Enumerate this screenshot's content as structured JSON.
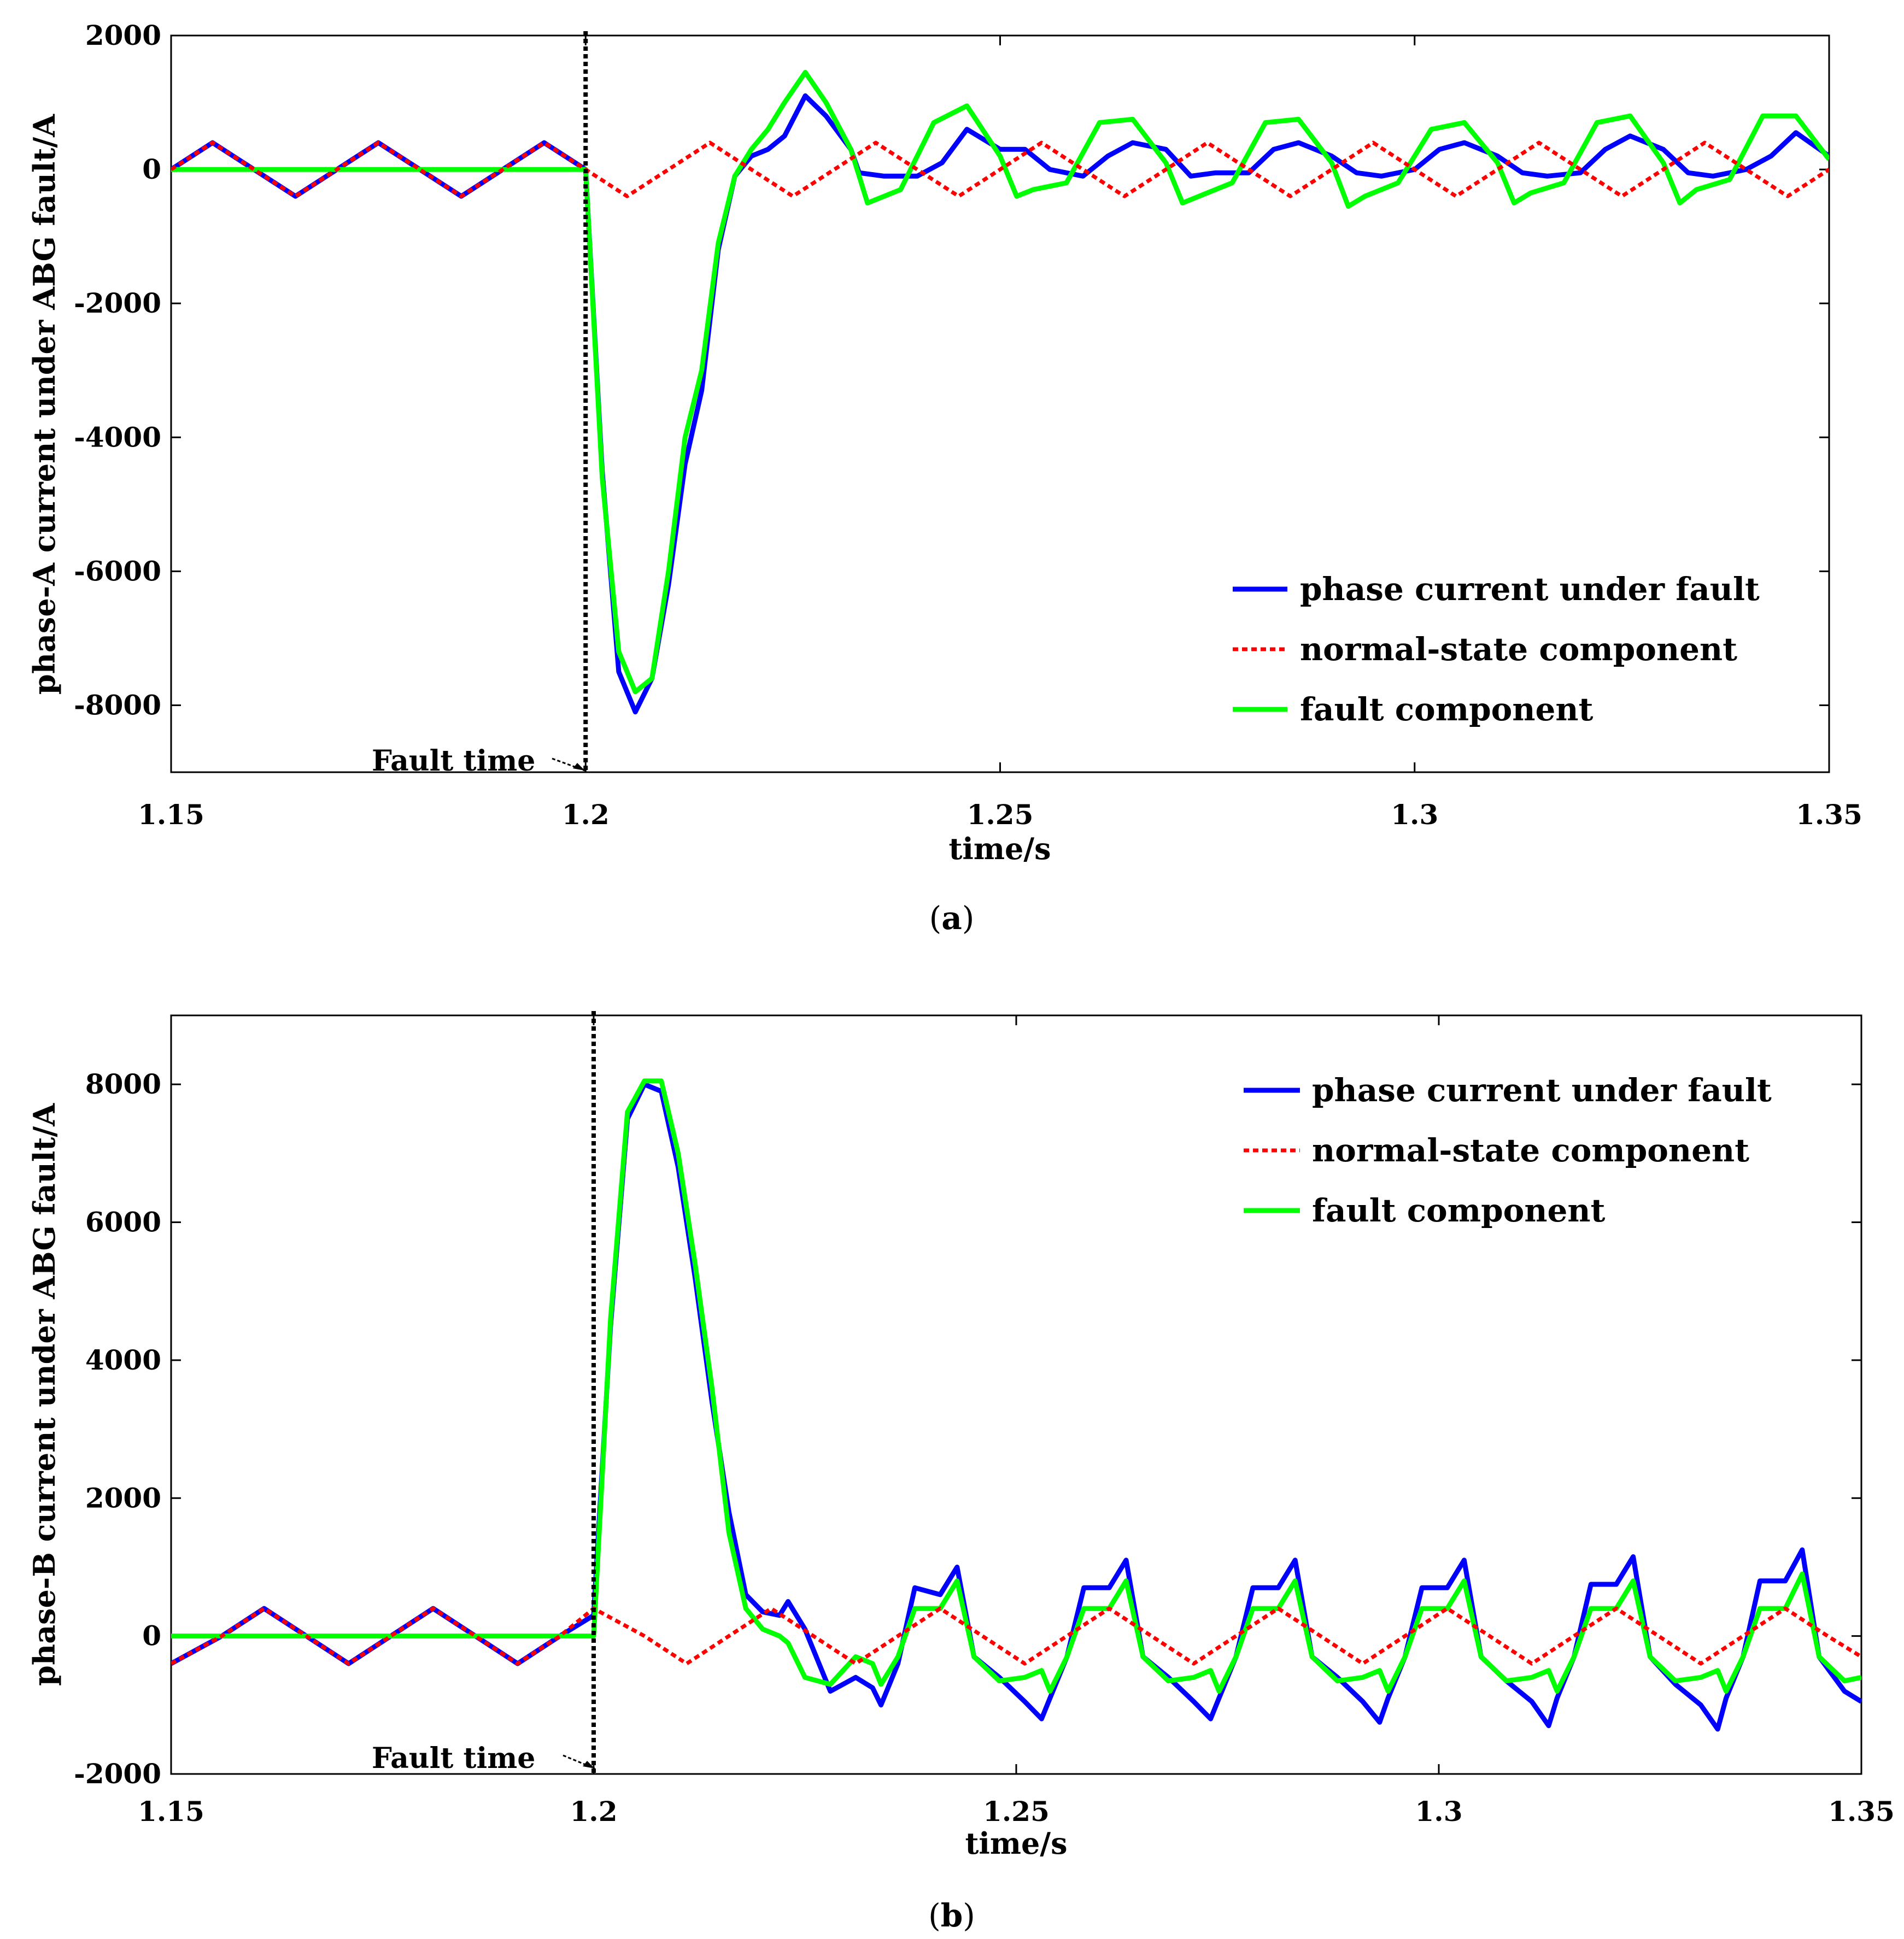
{
  "colors": {
    "fault_current": "#0000ff",
    "normal_state": "#ff0000",
    "fault_component": "#00ff00",
    "fault_marker": "#000000"
  },
  "chart_data": [
    {
      "type": "line",
      "panel_label": "a",
      "xlabel": "time/s",
      "ylabel": "phase-A current under ABG fault/A",
      "xlim": [
        1.15,
        1.35
      ],
      "ylim": [
        -9000,
        2000
      ],
      "xticks": [
        1.15,
        1.2,
        1.25,
        1.3,
        1.35
      ],
      "xtick_labels": [
        "1.15",
        "1.2",
        "1.25",
        "1.3",
        "1.35"
      ],
      "yticks": [
        2000,
        0,
        -2000,
        -4000,
        -6000,
        -8000
      ],
      "ytick_labels": [
        "2000",
        "0",
        "-2000",
        "-4000",
        "-6000",
        "-8000"
      ],
      "grid": false,
      "legend_position": "bottom-right",
      "annotation": {
        "text": "Fault time",
        "x": 1.2
      },
      "series": [
        {
          "name": "phase current under fault",
          "style": "solid",
          "color_key": "fault_current",
          "x": [
            1.15,
            1.155,
            1.16,
            1.165,
            1.17,
            1.175,
            1.18,
            1.185,
            1.19,
            1.195,
            1.2,
            1.202,
            1.204,
            1.206,
            1.208,
            1.21,
            1.212,
            1.214,
            1.216,
            1.218,
            1.22,
            1.222,
            1.224,
            1.2265,
            1.229,
            1.232,
            1.233,
            1.236,
            1.24,
            1.243,
            1.246,
            1.25,
            1.253,
            1.256,
            1.26,
            1.263,
            1.266,
            1.27,
            1.273,
            1.276,
            1.28,
            1.283,
            1.286,
            1.29,
            1.293,
            1.296,
            1.3,
            1.303,
            1.306,
            1.31,
            1.313,
            1.316,
            1.32,
            1.323,
            1.326,
            1.33,
            1.333,
            1.336,
            1.34,
            1.343,
            1.346,
            1.35
          ],
          "y": [
            0,
            400,
            0,
            -400,
            0,
            400,
            0,
            -400,
            0,
            400,
            0,
            -4500,
            -7500,
            -8100,
            -7600,
            -6200,
            -4400,
            -3300,
            -1200,
            -100,
            200,
            300,
            500,
            1100,
            800,
            300,
            -50,
            -100,
            -100,
            100,
            600,
            300,
            300,
            0,
            -100,
            200,
            400,
            300,
            -100,
            -50,
            -50,
            300,
            400,
            200,
            -50,
            -100,
            0,
            300,
            400,
            200,
            -50,
            -100,
            -50,
            300,
            500,
            300,
            -50,
            -100,
            0,
            200,
            550,
            200
          ]
        },
        {
          "name": "normal-state component",
          "style": "dotted",
          "color_key": "normal_state",
          "x": [
            1.15,
            1.155,
            1.16,
            1.165,
            1.17,
            1.175,
            1.18,
            1.185,
            1.19,
            1.195,
            1.2,
            1.205,
            1.21,
            1.215,
            1.22,
            1.225,
            1.23,
            1.235,
            1.24,
            1.245,
            1.25,
            1.255,
            1.26,
            1.265,
            1.27,
            1.275,
            1.28,
            1.285,
            1.29,
            1.295,
            1.3,
            1.305,
            1.31,
            1.315,
            1.32,
            1.325,
            1.33,
            1.335,
            1.34,
            1.345,
            1.35
          ],
          "y": [
            0,
            400,
            0,
            -400,
            0,
            400,
            0,
            -400,
            0,
            400,
            0,
            -400,
            0,
            400,
            0,
            -400,
            0,
            400,
            0,
            -400,
            0,
            400,
            0,
            -400,
            0,
            400,
            0,
            -400,
            0,
            400,
            0,
            -400,
            0,
            400,
            0,
            -400,
            0,
            400,
            0,
            -400,
            0
          ]
        },
        {
          "name": "fault component",
          "style": "solid",
          "color_key": "fault_component",
          "x": [
            1.15,
            1.2,
            1.202,
            1.204,
            1.206,
            1.208,
            1.21,
            1.212,
            1.214,
            1.216,
            1.218,
            1.22,
            1.222,
            1.224,
            1.2265,
            1.229,
            1.232,
            1.234,
            1.238,
            1.242,
            1.246,
            1.25,
            1.252,
            1.254,
            1.258,
            1.262,
            1.266,
            1.27,
            1.272,
            1.274,
            1.278,
            1.282,
            1.286,
            1.29,
            1.292,
            1.294,
            1.298,
            1.302,
            1.306,
            1.31,
            1.312,
            1.314,
            1.318,
            1.322,
            1.326,
            1.33,
            1.332,
            1.334,
            1.338,
            1.342,
            1.346,
            1.35
          ],
          "y": [
            0,
            0,
            -4600,
            -7200,
            -7800,
            -7600,
            -6000,
            -4000,
            -3000,
            -1100,
            -100,
            300,
            600,
            1000,
            1450,
            1000,
            300,
            -500,
            -300,
            700,
            950,
            200,
            -400,
            -300,
            -200,
            700,
            750,
            100,
            -500,
            -400,
            -200,
            700,
            750,
            100,
            -550,
            -400,
            -200,
            600,
            700,
            100,
            -500,
            -350,
            -200,
            700,
            800,
            100,
            -500,
            -300,
            -150,
            800,
            800,
            150
          ]
        }
      ]
    },
    {
      "type": "line",
      "panel_label": "b",
      "xlabel": "time/s",
      "ylabel": "phase-B current under ABG fault/A",
      "xlim": [
        1.15,
        1.35
      ],
      "ylim": [
        -2000,
        9000
      ],
      "xticks": [
        1.15,
        1.2,
        1.25,
        1.3,
        1.35
      ],
      "xtick_labels": [
        "1.15",
        "1.2",
        "1.25",
        "1.3",
        "1.35"
      ],
      "yticks": [
        8000,
        6000,
        4000,
        2000,
        0,
        -2000
      ],
      "ytick_labels": [
        "8000",
        "6000",
        "4000",
        "2000",
        "0",
        "-2000"
      ],
      "grid": false,
      "legend_position": "top-right",
      "annotation": {
        "text": "Fault time",
        "x": 1.2
      },
      "series": [
        {
          "name": "phase current under fault",
          "style": "solid",
          "color_key": "fault_current",
          "x": [
            1.15,
            1.156,
            1.161,
            1.166,
            1.171,
            1.176,
            1.181,
            1.186,
            1.191,
            1.196,
            1.2,
            1.202,
            1.204,
            1.206,
            1.208,
            1.21,
            1.212,
            1.214,
            1.216,
            1.218,
            1.22,
            1.222,
            1.223,
            1.225,
            1.228,
            1.231,
            1.233,
            1.234,
            1.236,
            1.238,
            1.241,
            1.243,
            1.245,
            1.248,
            1.251,
            1.253,
            1.254,
            1.256,
            1.258,
            1.261,
            1.263,
            1.265,
            1.268,
            1.271,
            1.273,
            1.274,
            1.276,
            1.278,
            1.281,
            1.283,
            1.285,
            1.288,
            1.291,
            1.293,
            1.294,
            1.296,
            1.298,
            1.301,
            1.303,
            1.305,
            1.308,
            1.311,
            1.313,
            1.314,
            1.316,
            1.318,
            1.321,
            1.323,
            1.325,
            1.328,
            1.331,
            1.333,
            1.334,
            1.336,
            1.338,
            1.341,
            1.343,
            1.345,
            1.348,
            1.35
          ],
          "y": [
            -400,
            0,
            400,
            0,
            -400,
            0,
            400,
            0,
            -400,
            0,
            300,
            4500,
            7500,
            8000,
            7900,
            6800,
            5200,
            3400,
            1800,
            600,
            350,
            300,
            500,
            100,
            -800,
            -600,
            -750,
            -1000,
            -400,
            700,
            600,
            1000,
            -300,
            -600,
            -950,
            -1200,
            -900,
            -300,
            700,
            700,
            1100,
            -300,
            -600,
            -950,
            -1200,
            -900,
            -300,
            700,
            700,
            1100,
            -300,
            -600,
            -950,
            -1250,
            -900,
            -300,
            700,
            700,
            1100,
            -300,
            -650,
            -950,
            -1300,
            -900,
            -300,
            750,
            750,
            1150,
            -300,
            -700,
            -1000,
            -1350,
            -900,
            -300,
            800,
            800,
            1250,
            -300,
            -800,
            -950
          ]
        },
        {
          "name": "normal-state component",
          "style": "dotted",
          "color_key": "normal_state",
          "x": [
            1.15,
            1.156,
            1.161,
            1.166,
            1.171,
            1.176,
            1.181,
            1.186,
            1.191,
            1.196,
            1.2,
            1.206,
            1.211,
            1.216,
            1.221,
            1.226,
            1.231,
            1.236,
            1.241,
            1.246,
            1.251,
            1.256,
            1.261,
            1.266,
            1.271,
            1.276,
            1.281,
            1.286,
            1.291,
            1.296,
            1.301,
            1.306,
            1.311,
            1.316,
            1.321,
            1.326,
            1.331,
            1.336,
            1.341,
            1.346,
            1.35
          ],
          "y": [
            -400,
            0,
            400,
            0,
            -400,
            0,
            400,
            0,
            -400,
            0,
            400,
            0,
            -400,
            0,
            400,
            0,
            -400,
            0,
            400,
            0,
            -400,
            0,
            400,
            0,
            -400,
            0,
            400,
            0,
            -400,
            0,
            400,
            0,
            -400,
            0,
            400,
            0,
            -400,
            0,
            400,
            0,
            -300
          ]
        },
        {
          "name": "fault component",
          "style": "solid",
          "color_key": "fault_component",
          "x": [
            1.15,
            1.2,
            1.202,
            1.204,
            1.206,
            1.208,
            1.21,
            1.212,
            1.214,
            1.216,
            1.218,
            1.22,
            1.222,
            1.223,
            1.225,
            1.228,
            1.231,
            1.233,
            1.234,
            1.236,
            1.238,
            1.241,
            1.243,
            1.245,
            1.248,
            1.251,
            1.253,
            1.254,
            1.256,
            1.258,
            1.261,
            1.263,
            1.265,
            1.268,
            1.271,
            1.273,
            1.274,
            1.276,
            1.278,
            1.281,
            1.283,
            1.285,
            1.288,
            1.291,
            1.293,
            1.294,
            1.296,
            1.298,
            1.301,
            1.303,
            1.305,
            1.308,
            1.311,
            1.313,
            1.314,
            1.316,
            1.318,
            1.321,
            1.323,
            1.325,
            1.328,
            1.331,
            1.333,
            1.334,
            1.336,
            1.338,
            1.341,
            1.343,
            1.345,
            1.348,
            1.35
          ],
          "y": [
            0,
            0,
            4600,
            7600,
            8050,
            8050,
            7000,
            5400,
            3600,
            1500,
            400,
            100,
            0,
            -100,
            -600,
            -700,
            -300,
            -400,
            -700,
            -300,
            400,
            400,
            800,
            -300,
            -650,
            -600,
            -500,
            -800,
            -300,
            400,
            400,
            800,
            -300,
            -650,
            -600,
            -500,
            -800,
            -300,
            400,
            400,
            800,
            -300,
            -650,
            -600,
            -500,
            -800,
            -300,
            400,
            400,
            800,
            -300,
            -650,
            -600,
            -500,
            -800,
            -300,
            400,
            400,
            800,
            -300,
            -650,
            -600,
            -500,
            -800,
            -300,
            400,
            400,
            900,
            -300,
            -650,
            -600
          ]
        }
      ]
    }
  ],
  "captions": {
    "a": {
      "open": "(",
      "label": "a",
      "close": ")"
    },
    "b": {
      "open": "(",
      "label": "b",
      "close": ")"
    }
  }
}
